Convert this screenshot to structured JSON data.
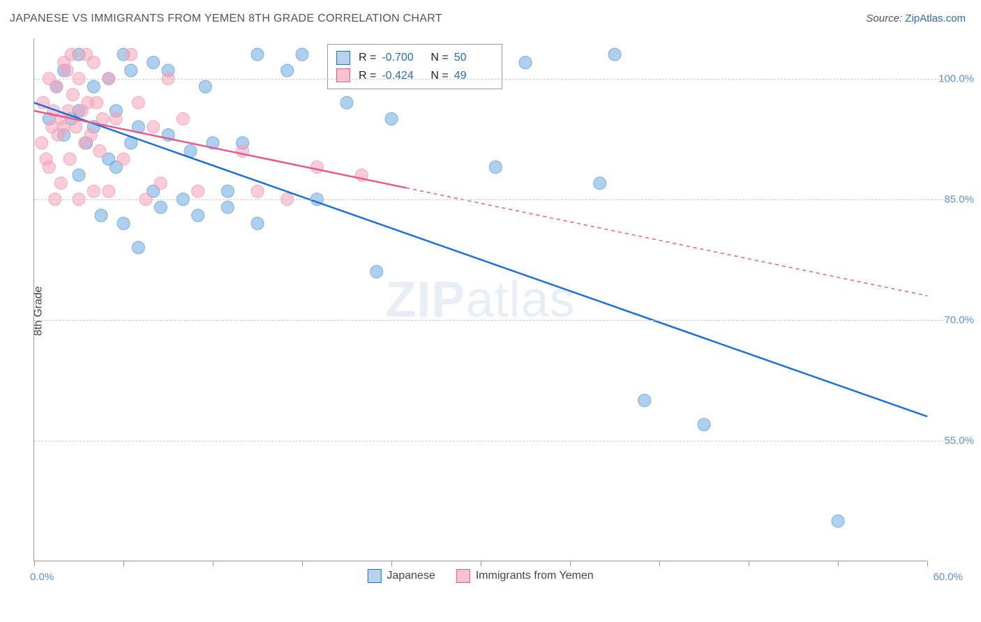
{
  "title": "JAPANESE VS IMMIGRANTS FROM YEMEN 8TH GRADE CORRELATION CHART",
  "source_prefix": "Source: ",
  "source_name": "ZipAtlas.com",
  "watermark": {
    "bold": "ZIP",
    "thin": "atlas"
  },
  "y_axis_label": "8th Grade",
  "chart": {
    "type": "scatter_with_regression",
    "background": "#ffffff",
    "grid_color": "#cccccc",
    "axis_color": "#999999",
    "tick_label_color": "#5b8fd6",
    "xlim": [
      0,
      60
    ],
    "ylim": [
      40,
      105
    ],
    "x_ticks": [
      0,
      6,
      12,
      18,
      24,
      30,
      36,
      42,
      48,
      54,
      60
    ],
    "x_labels": {
      "min": "0.0%",
      "max": "60.0%"
    },
    "y_grid": [
      55,
      70,
      85,
      100
    ],
    "y_labels": [
      "55.0%",
      "70.0%",
      "85.0%",
      "100.0%"
    ],
    "marker_radius": 9,
    "marker_opacity": 0.55,
    "marker_stroke_opacity": 0.9,
    "line_width": 2.5,
    "series": [
      {
        "name": "Japanese",
        "color": "#6ea8e0",
        "line_color": "#1e6fd9",
        "swatch_fill": "#b9d2ee",
        "R": "-0.700",
        "N": "50",
        "points": [
          [
            1,
            95
          ],
          [
            1.5,
            99
          ],
          [
            2,
            93
          ],
          [
            2,
            101
          ],
          [
            2.5,
            95
          ],
          [
            3,
            96
          ],
          [
            3,
            88
          ],
          [
            3,
            103
          ],
          [
            3.5,
            92
          ],
          [
            4,
            99
          ],
          [
            4,
            94
          ],
          [
            4.5,
            83
          ],
          [
            5,
            100
          ],
          [
            5,
            90
          ],
          [
            5.5,
            89
          ],
          [
            5.5,
            96
          ],
          [
            6,
            103
          ],
          [
            6,
            82
          ],
          [
            6.5,
            92
          ],
          [
            6.5,
            101
          ],
          [
            7,
            94
          ],
          [
            7,
            79
          ],
          [
            8,
            102
          ],
          [
            8,
            86
          ],
          [
            8.5,
            84
          ],
          [
            9,
            93
          ],
          [
            9,
            101
          ],
          [
            10,
            85
          ],
          [
            10.5,
            91
          ],
          [
            11,
            83
          ],
          [
            11.5,
            99
          ],
          [
            12,
            92
          ],
          [
            13,
            86
          ],
          [
            13,
            84
          ],
          [
            14,
            92
          ],
          [
            15,
            103
          ],
          [
            15,
            82
          ],
          [
            17,
            101
          ],
          [
            18,
            103
          ],
          [
            19,
            85
          ],
          [
            21,
            97
          ],
          [
            23,
            76
          ],
          [
            24,
            95
          ],
          [
            31,
            89
          ],
          [
            33,
            102
          ],
          [
            39,
            103
          ],
          [
            41,
            60
          ],
          [
            45,
            57
          ],
          [
            54,
            45
          ],
          [
            38,
            87
          ]
        ],
        "regression": {
          "x0": 0,
          "y0": 97,
          "x1": 60,
          "y1": 58,
          "dashed_from_x": null
        }
      },
      {
        "name": "Immigrants from Yemen",
        "color": "#f4a3b8",
        "line_color": "#e75a88",
        "swatch_fill": "#f7c3d1",
        "R": "-0.424",
        "N": "49",
        "points": [
          [
            0.5,
            92
          ],
          [
            0.6,
            97
          ],
          [
            0.8,
            90
          ],
          [
            1,
            89
          ],
          [
            1,
            100
          ],
          [
            1.2,
            94
          ],
          [
            1.3,
            96
          ],
          [
            1.4,
            85
          ],
          [
            1.5,
            99
          ],
          [
            1.6,
            93
          ],
          [
            1.8,
            95
          ],
          [
            1.8,
            87
          ],
          [
            2,
            102
          ],
          [
            2,
            94
          ],
          [
            2.2,
            101
          ],
          [
            2.3,
            96
          ],
          [
            2.4,
            90
          ],
          [
            2.5,
            103
          ],
          [
            2.6,
            98
          ],
          [
            2.8,
            94
          ],
          [
            3,
            85
          ],
          [
            3,
            100
          ],
          [
            3.2,
            96
          ],
          [
            3.4,
            92
          ],
          [
            3.5,
            103
          ],
          [
            3.6,
            97
          ],
          [
            3.8,
            93
          ],
          [
            4,
            102
          ],
          [
            4,
            86
          ],
          [
            4.2,
            97
          ],
          [
            4.4,
            91
          ],
          [
            4.6,
            95
          ],
          [
            5,
            100
          ],
          [
            5,
            86
          ],
          [
            5.5,
            95
          ],
          [
            6,
            90
          ],
          [
            6.5,
            103
          ],
          [
            7,
            97
          ],
          [
            7.5,
            85
          ],
          [
            8,
            94
          ],
          [
            8.5,
            87
          ],
          [
            9,
            100
          ],
          [
            10,
            95
          ],
          [
            11,
            86
          ],
          [
            14,
            91
          ],
          [
            15,
            86
          ],
          [
            17,
            85
          ],
          [
            19,
            89
          ],
          [
            22,
            88
          ]
        ],
        "regression": {
          "x0": 0,
          "y0": 96,
          "x1": 60,
          "y1": 73,
          "solid_until_x": 25
        }
      }
    ]
  },
  "legend_bottom": [
    {
      "label": "Japanese",
      "series_index": 0
    },
    {
      "label": "Immigrants from Yemen",
      "series_index": 1
    }
  ]
}
